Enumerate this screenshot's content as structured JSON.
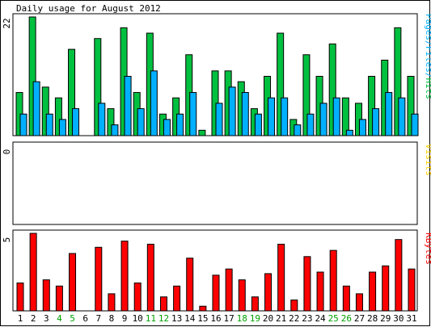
{
  "chart_data": [
    {
      "type": "bar",
      "title": "Daily usage for August 2012",
      "ylabel_top_tick": "22",
      "ymax": 22,
      "side_label": [
        "Pages",
        "Files",
        "Hits"
      ],
      "x": [
        "1",
        "2",
        "3",
        "4",
        "5",
        "6",
        "7",
        "8",
        "9",
        "10",
        "11",
        "12",
        "13",
        "14",
        "15",
        "16",
        "17",
        "18",
        "19",
        "20",
        "21",
        "22",
        "23",
        "24",
        "25",
        "26",
        "27",
        "28",
        "29",
        "30",
        "31"
      ],
      "weekend_days": [
        "4",
        "5",
        "11",
        "12",
        "18",
        "19",
        "25",
        "26"
      ],
      "series": [
        {
          "name": "Hits",
          "color": "#00c040",
          "values": [
            8,
            22,
            9,
            7,
            16,
            0,
            18,
            5,
            20,
            8,
            19,
            4,
            7,
            15,
            1,
            12,
            12,
            10,
            5,
            11,
            19,
            3,
            15,
            11,
            17,
            7,
            6,
            11,
            14,
            20,
            11
          ]
        },
        {
          "name": "Files",
          "color": "#00b0ff",
          "values": [
            4,
            10,
            4,
            3,
            5,
            0,
            6,
            2,
            11,
            5,
            12,
            3,
            4,
            8,
            0,
            6,
            9,
            8,
            4,
            7,
            7,
            2,
            4,
            6,
            7,
            1,
            3,
            5,
            8,
            7,
            4
          ]
        },
        {
          "name": "Pages",
          "color": "#00b0ff",
          "values": [
            0,
            0,
            0,
            0,
            0,
            0,
            0,
            0,
            0,
            0,
            0,
            0,
            0,
            0,
            0,
            0,
            0,
            0,
            0,
            0,
            0,
            0,
            0,
            0,
            0,
            0,
            0,
            0,
            0,
            0,
            0
          ]
        }
      ]
    },
    {
      "type": "bar",
      "ylabel_top_tick": "0",
      "ymax": 0,
      "side_label": "Visits",
      "series": [
        {
          "name": "Visits",
          "color": "#ffd000",
          "values": [
            0,
            0,
            0,
            0,
            0,
            0,
            0,
            0,
            0,
            0,
            0,
            0,
            0,
            0,
            0,
            0,
            0,
            0,
            0,
            0,
            0,
            0,
            0,
            0,
            0,
            0,
            0,
            0,
            0,
            0,
            0
          ]
        }
      ]
    },
    {
      "type": "bar",
      "ylabel_top_tick": "5",
      "ymax": 5,
      "side_label": "KBytes",
      "series": [
        {
          "name": "KBytes",
          "color": "#ff0000",
          "values": [
            1.8,
            5.0,
            2.0,
            1.6,
            3.7,
            0,
            4.1,
            1.1,
            4.5,
            1.8,
            4.3,
            0.9,
            1.6,
            3.4,
            0.3,
            2.3,
            2.7,
            2.0,
            0.9,
            2.4,
            4.3,
            0.7,
            3.5,
            2.5,
            3.9,
            1.6,
            1.1,
            2.5,
            2.9,
            4.6,
            2.7
          ]
        }
      ]
    }
  ]
}
